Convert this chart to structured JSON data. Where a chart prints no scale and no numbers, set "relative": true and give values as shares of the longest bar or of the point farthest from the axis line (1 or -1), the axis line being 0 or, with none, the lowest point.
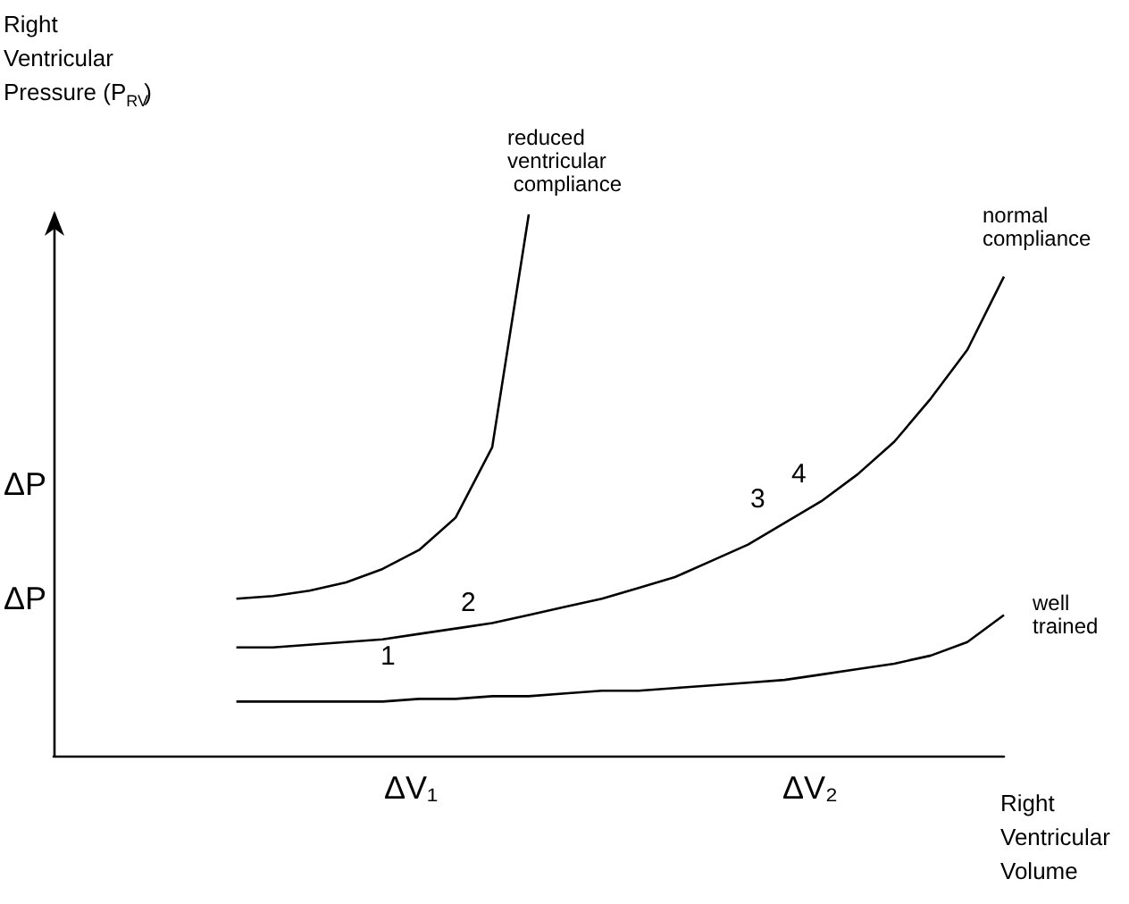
{
  "chart_data": {
    "type": "line",
    "relative": true,
    "ylabel": "Right Ventricular Pressure (P$_{RV}$)",
    "xlabel": "Right Ventricular Volume",
    "marker": "none",
    "grid": false,
    "legend": false,
    "annotations": [
      "ΔP",
      "ΔP",
      "ΔV₁",
      "ΔV₂",
      "1",
      "2",
      "3",
      "4"
    ],
    "categories": [
      null,
      null,
      null,
      null,
      null,
      null,
      null,
      null,
      null,
      null,
      null,
      null,
      null,
      null,
      null,
      null,
      null,
      null,
      null,
      null,
      null,
      null,
      null,
      null,
      null,
      null,
      null
    ],
    "series": [
      {
        "name": "reduced ventricular compliance",
        "color": "#000000",
        "values": [
          null,
          null,
          null,
          null,
          null,
          0.29,
          0.295,
          0.305,
          0.32,
          0.345,
          0.38,
          0.44,
          0.57,
          1.0,
          null,
          null,
          null,
          null,
          null,
          null,
          null,
          null,
          null,
          null,
          null,
          null,
          null
        ]
      },
      {
        "name": "normal compliance",
        "color": "#000000",
        "values": [
          null,
          null,
          null,
          null,
          null,
          0.2,
          0.2,
          0.205,
          0.21,
          0.215,
          0.225,
          0.235,
          0.245,
          0.26,
          0.275,
          0.29,
          0.31,
          0.33,
          0.36,
          0.39,
          0.43,
          0.47,
          0.52,
          0.58,
          0.66,
          0.75,
          0.885
        ]
      },
      {
        "name": "well trained",
        "color": "#000000",
        "values": [
          null,
          null,
          null,
          null,
          null,
          0.1,
          0.1,
          0.1,
          0.1,
          0.1,
          0.105,
          0.105,
          0.11,
          0.11,
          0.115,
          0.12,
          0.12,
          0.125,
          0.13,
          0.135,
          0.14,
          0.15,
          0.16,
          0.17,
          0.185,
          0.21,
          0.26
        ]
      }
    ]
  }
}
